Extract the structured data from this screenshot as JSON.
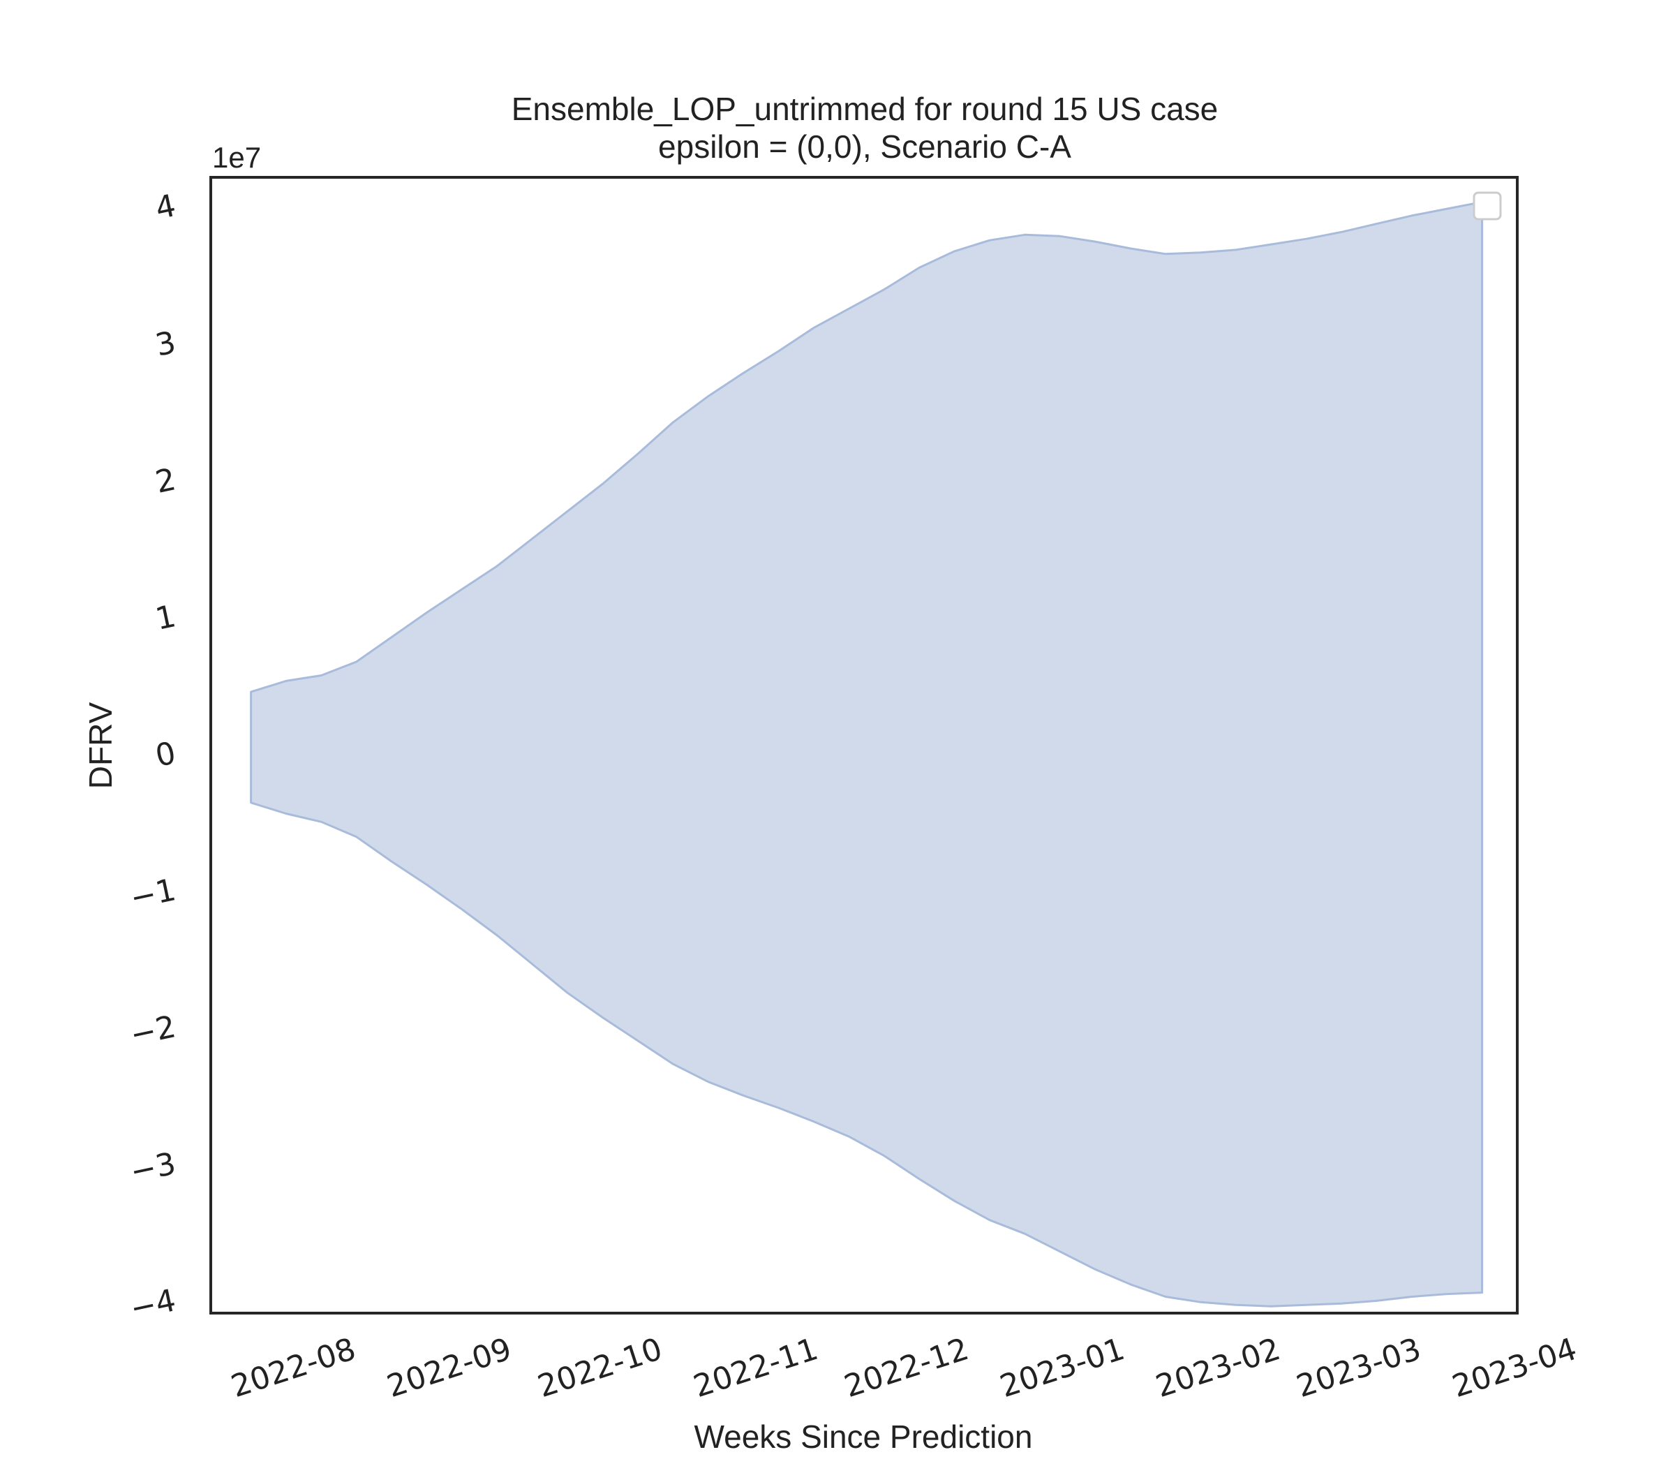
{
  "chart_data": {
    "type": "area",
    "title": "Ensemble_LOP_untrimmed for round 15 US case",
    "subtitle": "epsilon = (0,0), Scenario C-A",
    "xlabel": "Weeks Since Prediction",
    "ylabel": "DFRV",
    "y_offset_label": "1e7",
    "y_multiplier": 10000000,
    "xlim": [
      "2022-07-15",
      "2023-04-01"
    ],
    "ylim": [
      -4.1,
      4.2
    ],
    "x_tick_labels": [
      "2022-08",
      "2022-09",
      "2022-10",
      "2022-11",
      "2022-12",
      "2023-01",
      "2023-02",
      "2023-03",
      "2023-04"
    ],
    "x_tick_dates": [
      "2022-08-01",
      "2022-09-01",
      "2022-10-01",
      "2022-11-01",
      "2022-12-01",
      "2023-01-01",
      "2023-02-01",
      "2023-03-01",
      "2023-04-01"
    ],
    "y_ticks": [
      4,
      3,
      2,
      1,
      0,
      -1,
      -2,
      -3,
      -4
    ],
    "y_tick_labels": [
      "4",
      "3",
      "2",
      "1",
      "0",
      "−1",
      "−2",
      "−3",
      "−4"
    ],
    "grid": false,
    "legend": {
      "placement": "top-right",
      "entries": []
    },
    "fill_color": "#a9bbda",
    "fill_opacity": 0.55,
    "edge_color": "#a9bbda",
    "series": [
      {
        "x": [
          "2022-07-23",
          "2022-07-30",
          "2022-08-06",
          "2022-08-13",
          "2022-08-20",
          "2022-08-27",
          "2022-09-03",
          "2022-09-10",
          "2022-09-17",
          "2022-09-24",
          "2022-10-01",
          "2022-10-08",
          "2022-10-15",
          "2022-10-22",
          "2022-10-29",
          "2022-11-05",
          "2022-11-12",
          "2022-11-19",
          "2022-11-26",
          "2022-12-03",
          "2022-12-10",
          "2022-12-17",
          "2022-12-24",
          "2022-12-31",
          "2023-01-07",
          "2023-01-14",
          "2023-01-21",
          "2023-01-28",
          "2023-02-04",
          "2023-02-11",
          "2023-02-18",
          "2023-02-25",
          "2023-03-04",
          "2023-03-11",
          "2023-03-18",
          "2023-03-25"
        ],
        "upper": [
          0.44,
          0.52,
          0.56,
          0.66,
          0.84,
          1.02,
          1.19,
          1.36,
          1.56,
          1.76,
          1.96,
          2.18,
          2.41,
          2.6,
          2.77,
          2.93,
          3.1,
          3.24,
          3.38,
          3.54,
          3.66,
          3.74,
          3.78,
          3.77,
          3.73,
          3.68,
          3.64,
          3.65,
          3.67,
          3.71,
          3.75,
          3.8,
          3.86,
          3.92,
          3.97,
          4.02
        ],
        "lower": [
          -0.37,
          -0.45,
          -0.51,
          -0.62,
          -0.8,
          -0.97,
          -1.15,
          -1.34,
          -1.55,
          -1.76,
          -1.94,
          -2.11,
          -2.28,
          -2.41,
          -2.51,
          -2.6,
          -2.7,
          -2.81,
          -2.95,
          -3.12,
          -3.28,
          -3.42,
          -3.52,
          -3.65,
          -3.78,
          -3.89,
          -3.98,
          -4.02,
          -4.04,
          -4.05,
          -4.04,
          -4.03,
          -4.01,
          -3.98,
          -3.96,
          -3.95
        ]
      }
    ]
  }
}
